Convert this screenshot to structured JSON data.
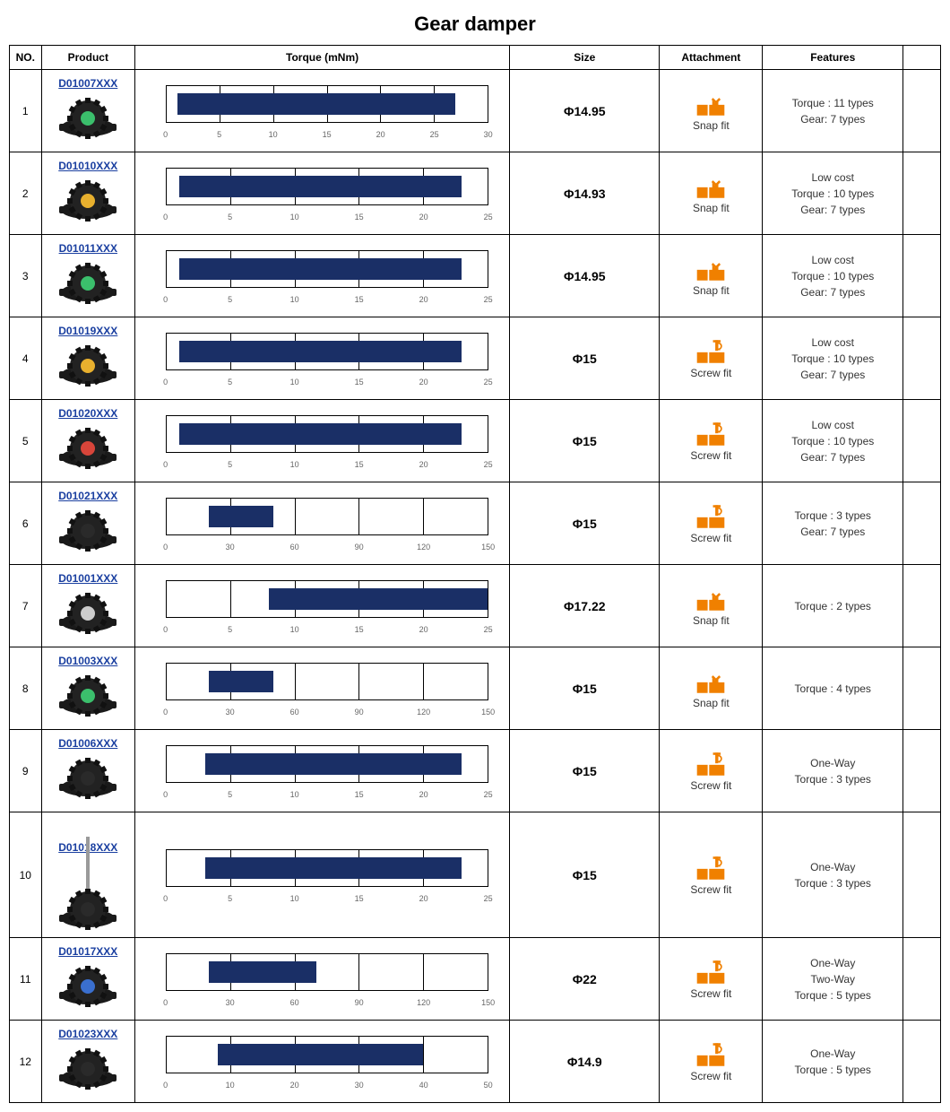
{
  "title": "Gear damper",
  "columns": {
    "no": "NO.",
    "product": "Product",
    "torque": "Torque (mNm)",
    "size": "Size",
    "attachment": "Attachment",
    "features": "Features"
  },
  "colors": {
    "bar": "#1a2f66",
    "icon": "#f08000",
    "link": "#1a3fa0",
    "border": "#000000",
    "tick": "#666666"
  },
  "attachment_types": {
    "snap": {
      "label": "Snap fit"
    },
    "screw": {
      "label": "Screw fit"
    }
  },
  "rows": [
    {
      "no": "1",
      "code": "D01007XXX",
      "size": "Φ14.95",
      "attachment": "snap",
      "features": [
        "Torque : 11 types",
        "Gear: 7 types"
      ],
      "img_accent": "#3bbf6c",
      "chart": {
        "min": 0,
        "max": 30,
        "step": 5,
        "bar_start": 1,
        "bar_end": 27
      }
    },
    {
      "no": "2",
      "code": "D01010XXX",
      "size": "Φ14.93",
      "attachment": "snap",
      "features": [
        "Low cost",
        "Torque : 10 types",
        "Gear: 7 types"
      ],
      "img_accent": "#e8b02e",
      "chart": {
        "min": 0,
        "max": 25,
        "step": 5,
        "bar_start": 1,
        "bar_end": 23
      }
    },
    {
      "no": "3",
      "code": "D01011XXX",
      "size": "Φ14.95",
      "attachment": "snap",
      "features": [
        "Low cost",
        "Torque : 10 types",
        "Gear: 7 types"
      ],
      "img_accent": "#3bbf6c",
      "chart": {
        "min": 0,
        "max": 25,
        "step": 5,
        "bar_start": 1,
        "bar_end": 23
      }
    },
    {
      "no": "4",
      "code": "D01019XXX",
      "size": "Φ15",
      "attachment": "screw",
      "features": [
        "Low cost",
        "Torque : 10 types",
        "Gear: 7 types"
      ],
      "img_accent": "#e8b02e",
      "chart": {
        "min": 0,
        "max": 25,
        "step": 5,
        "bar_start": 1,
        "bar_end": 23
      }
    },
    {
      "no": "5",
      "code": "D01020XXX",
      "size": "Φ15",
      "attachment": "screw",
      "features": [
        "Low cost",
        "Torque : 10 types",
        "Gear: 7 types"
      ],
      "img_accent": "#d8453a",
      "chart": {
        "min": 0,
        "max": 25,
        "step": 5,
        "bar_start": 1,
        "bar_end": 23
      }
    },
    {
      "no": "6",
      "code": "D01021XXX",
      "size": "Φ15",
      "attachment": "screw",
      "features": [
        "Torque : 3 types",
        "Gear: 7 types"
      ],
      "img_accent": "#2a2a2a",
      "chart": {
        "min": 0,
        "max": 150,
        "step": 30,
        "bar_start": 20,
        "bar_end": 50
      }
    },
    {
      "no": "7",
      "code": "D01001XXX",
      "size": "Φ17.22",
      "attachment": "snap",
      "features": [
        "Torque : 2 types"
      ],
      "img_accent": "#cccccc",
      "chart": {
        "min": 0,
        "max": 25,
        "step": 5,
        "bar_start": 8,
        "bar_end": 25
      }
    },
    {
      "no": "8",
      "code": "D01003XXX",
      "size": "Φ15",
      "attachment": "snap",
      "features": [
        "Torque : 4 types"
      ],
      "img_accent": "#3bbf6c",
      "chart": {
        "min": 0,
        "max": 150,
        "step": 30,
        "bar_start": 20,
        "bar_end": 50
      }
    },
    {
      "no": "9",
      "code": "D01006XXX",
      "size": "Φ15",
      "attachment": "screw",
      "features": [
        "One-Way",
        "Torque : 3 types"
      ],
      "img_accent": "#2a2a2a",
      "chart": {
        "min": 0,
        "max": 25,
        "step": 5,
        "bar_start": 3,
        "bar_end": 23
      }
    },
    {
      "no": "10",
      "code": "D01018XXX",
      "size": "Φ15",
      "attachment": "screw",
      "features": [
        "One-Way",
        "Torque : 3 types"
      ],
      "img_accent": "#2a2a2a",
      "tall": true,
      "chart": {
        "min": 0,
        "max": 25,
        "step": 5,
        "bar_start": 3,
        "bar_end": 23
      }
    },
    {
      "no": "11",
      "code": "D01017XXX",
      "size": "Φ22",
      "attachment": "screw",
      "features": [
        "One-Way",
        "Two-Way",
        "Torque : 5 types"
      ],
      "img_accent": "#3a6fcf",
      "chart": {
        "min": 0,
        "max": 150,
        "step": 30,
        "bar_start": 20,
        "bar_end": 70
      }
    },
    {
      "no": "12",
      "code": "D01023XXX",
      "size": "Φ14.9",
      "attachment": "screw",
      "features": [
        "One-Way",
        "Torque : 5 types"
      ],
      "img_accent": "#2a2a2a",
      "chart": {
        "min": 0,
        "max": 50,
        "step": 10,
        "bar_start": 8,
        "bar_end": 40
      }
    }
  ]
}
